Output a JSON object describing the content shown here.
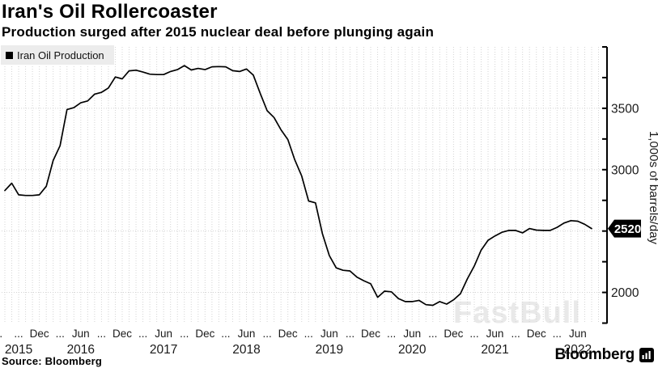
{
  "header": {
    "title": "Iran's Oil Rollercoaster",
    "subtitle": "Production surged after 2015 nuclear deal before plunging again"
  },
  "legend": {
    "label": "Iran Oil Production",
    "marker_color": "#000000"
  },
  "watermark": "FastBull",
  "footer": {
    "source": "Source: Bloomberg",
    "brand": "Bloomberg"
  },
  "chart_data": {
    "type": "line",
    "series_name": "Iran Oil Production",
    "line_color": "#000000",
    "grid_color": "#d4d4d4",
    "grid": true,
    "months": [
      "2015-07",
      "2015-08",
      "2015-09",
      "2015-10",
      "2015-11",
      "2015-12",
      "2016-01",
      "2016-02",
      "2016-03",
      "2016-04",
      "2016-05",
      "2016-06",
      "2016-07",
      "2016-08",
      "2016-09",
      "2016-10",
      "2016-11",
      "2016-12",
      "2017-01",
      "2017-02",
      "2017-03",
      "2017-04",
      "2017-05",
      "2017-06",
      "2017-07",
      "2017-08",
      "2017-09",
      "2017-10",
      "2017-11",
      "2017-12",
      "2018-01",
      "2018-02",
      "2018-03",
      "2018-04",
      "2018-05",
      "2018-06",
      "2018-07",
      "2018-08",
      "2018-09",
      "2018-10",
      "2018-11",
      "2018-12",
      "2019-01",
      "2019-02",
      "2019-03",
      "2019-04",
      "2019-05",
      "2019-06",
      "2019-07",
      "2019-08",
      "2019-09",
      "2019-10",
      "2019-11",
      "2019-12",
      "2020-01",
      "2020-02",
      "2020-03",
      "2020-04",
      "2020-05",
      "2020-06",
      "2020-07",
      "2020-08",
      "2020-09",
      "2020-10",
      "2020-11",
      "2020-12",
      "2021-01",
      "2021-02",
      "2021-03",
      "2021-04",
      "2021-05",
      "2021-06",
      "2021-07",
      "2021-08",
      "2021-09",
      "2021-10",
      "2021-11",
      "2021-12",
      "2022-01",
      "2022-02",
      "2022-03",
      "2022-04",
      "2022-05",
      "2022-06",
      "2022-07",
      "2022-08"
    ],
    "values": [
      2830,
      2890,
      2795,
      2790,
      2790,
      2795,
      2865,
      3075,
      3195,
      3490,
      3505,
      3545,
      3560,
      3615,
      3630,
      3665,
      3755,
      3740,
      3805,
      3810,
      3795,
      3778,
      3775,
      3775,
      3800,
      3815,
      3848,
      3812,
      3825,
      3815,
      3838,
      3840,
      3838,
      3806,
      3800,
      3820,
      3770,
      3620,
      3480,
      3425,
      3325,
      3245,
      3080,
      2950,
      2745,
      2730,
      2480,
      2300,
      2200,
      2180,
      2175,
      2125,
      2095,
      2070,
      1960,
      2010,
      2005,
      1950,
      1925,
      1925,
      1935,
      1900,
      1895,
      1925,
      1905,
      1940,
      1990,
      2110,
      2215,
      2345,
      2425,
      2460,
      2490,
      2505,
      2505,
      2485,
      2520,
      2508,
      2505,
      2505,
      2530,
      2565,
      2585,
      2580,
      2555,
      2520
    ],
    "y_axis": {
      "title": "1,000s of barrels/day",
      "side": "right",
      "min": 1750,
      "max": 4000,
      "tick_step": 250,
      "labeled_ticks": [
        2000,
        3000,
        3500
      ],
      "gridline_values": [
        2000,
        2500,
        3000,
        3500
      ]
    },
    "x_axis": {
      "quarter_tick_labels": [
        "...",
        "...",
        "Dec",
        "...",
        "Jun",
        "...",
        "Dec",
        "...",
        "Jun",
        "...",
        "Dec",
        "...",
        "Jun",
        "...",
        "Dec",
        "...",
        "Jun",
        "...",
        "Dec",
        "...",
        "Jun",
        "...",
        "Dec",
        "...",
        "Jun",
        "...",
        "Dec",
        "...",
        "Jun"
      ],
      "years": [
        {
          "label": "2015",
          "month_index": 2
        },
        {
          "label": "2016",
          "month_index": 11
        },
        {
          "label": "2017",
          "month_index": 23
        },
        {
          "label": "2018",
          "month_index": 35
        },
        {
          "label": "2019",
          "month_index": 47
        },
        {
          "label": "2020",
          "month_index": 59
        },
        {
          "label": "2021",
          "month_index": 71
        },
        {
          "label": "2022",
          "month_index": 83
        }
      ]
    },
    "badge": {
      "value": 2520,
      "label": "2520",
      "bg": "#000000",
      "text_color": "#ffffff"
    }
  }
}
